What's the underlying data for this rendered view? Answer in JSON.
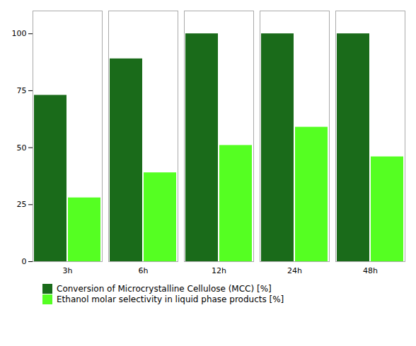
{
  "chart_data": {
    "type": "bar",
    "categories": [
      "3h",
      "6h",
      "12h",
      "24h",
      "48h"
    ],
    "series": [
      {
        "name": "Conversion of Microcrystalline Cellulose (MCC) [%]",
        "color": "#1a6b1a",
        "values": [
          73,
          89,
          100,
          100,
          100
        ]
      },
      {
        "name": "Ethanol molar selectivity in liquid phase products [%]",
        "color": "#55ff22",
        "values": [
          28,
          39,
          51,
          59,
          46
        ]
      }
    ],
    "ylim": [
      0,
      110
    ],
    "yticks": [
      0,
      25,
      50,
      75,
      100
    ],
    "grid": false,
    "legend": "bottom"
  }
}
